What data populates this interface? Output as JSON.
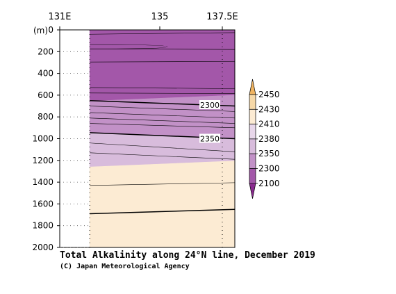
{
  "chart_data": {
    "type": "heatmap",
    "title": "Total Alkalinity along 24°N line, December 2019",
    "credit": "(C) Japan Meteorological Agency",
    "ylabel": "(m)",
    "xlim": [
      131.0,
      138.0
    ],
    "ylim": [
      2000,
      0
    ],
    "x_ticks": [
      {
        "value": 131.0,
        "label": "131E"
      },
      {
        "value": 135.0,
        "label": "135"
      },
      {
        "value": 137.5,
        "label": "137.5E"
      }
    ],
    "y_ticks": [
      {
        "value": 0,
        "label": "0"
      },
      {
        "value": 200,
        "label": "200"
      },
      {
        "value": 400,
        "label": "400"
      },
      {
        "value": 600,
        "label": "600"
      },
      {
        "value": 800,
        "label": "800"
      },
      {
        "value": 1000,
        "label": "1000"
      },
      {
        "value": 1200,
        "label": "1200"
      },
      {
        "value": 1400,
        "label": "1400"
      },
      {
        "value": 1600,
        "label": "1600"
      },
      {
        "value": 1800,
        "label": "1800"
      },
      {
        "value": 2000,
        "label": "2000"
      }
    ],
    "data_x_range": [
      132.2,
      138.0
    ],
    "station_lons": [
      132.2,
      137.5
    ],
    "colorbar": {
      "labels": [
        "2450",
        "2430",
        "2410",
        "2380",
        "2350",
        "2300",
        "2100"
      ],
      "colors": [
        "#f0b461",
        "#f7d9a8",
        "#fcebd3",
        "#e8d7ea",
        "#d8bcdc",
        "#c291c7",
        "#a357a9",
        "#8a2a8f"
      ]
    },
    "bands": [
      {
        "color": "#a357a9",
        "top": [
          0,
          0
        ],
        "bottom": [
          655,
          600
        ]
      },
      {
        "color": "#c291c7",
        "top": [
          655,
          600
        ],
        "bottom": [
          950,
          1000
        ]
      },
      {
        "color": "#d8bcdc",
        "top": [
          950,
          1000
        ],
        "bottom": [
          1260,
          1205
        ]
      },
      {
        "color": "#fcebd3",
        "top": [
          1260,
          1205
        ],
        "bottom": [
          2000,
          2000
        ]
      }
    ],
    "contours": [
      {
        "depth": [
          650,
          700
        ],
        "bold": true
      },
      {
        "depth": [
          945,
          1000
        ],
        "bold": true
      },
      {
        "depth": [
          1690,
          1650
        ],
        "bold": true
      },
      {
        "depth": [
          40,
          25
        ],
        "bold": false
      },
      {
        "depth": [
          175,
          180
        ],
        "bold": false
      },
      {
        "depth": [
          295,
          290
        ],
        "bold": false
      },
      {
        "depth": [
          530,
          540
        ],
        "bold": false
      },
      {
        "depth": [
          580,
          585
        ],
        "bold": false
      },
      {
        "depth": [
          700,
          750
        ],
        "bold": false
      },
      {
        "depth": [
          760,
          810
        ],
        "bold": false
      },
      {
        "depth": [
          810,
          860
        ],
        "bold": false
      },
      {
        "depth": [
          860,
          900
        ],
        "bold": false
      },
      {
        "depth": [
          1040,
          1120
        ],
        "bold": false
      },
      {
        "depth": [
          1130,
          1190
        ],
        "bold": false
      },
      {
        "depth": [
          1430,
          1405
        ],
        "bold": false
      }
    ],
    "closed_contour": {
      "depth_top": 135,
      "depth_bottom": 175,
      "lon_start": 132.2,
      "lon_tip": 135.3
    },
    "contour_labels": [
      {
        "text": "2300",
        "lon": 137.0,
        "depth": 690
      },
      {
        "text": "2350",
        "lon": 137.0,
        "depth": 1000
      }
    ]
  }
}
